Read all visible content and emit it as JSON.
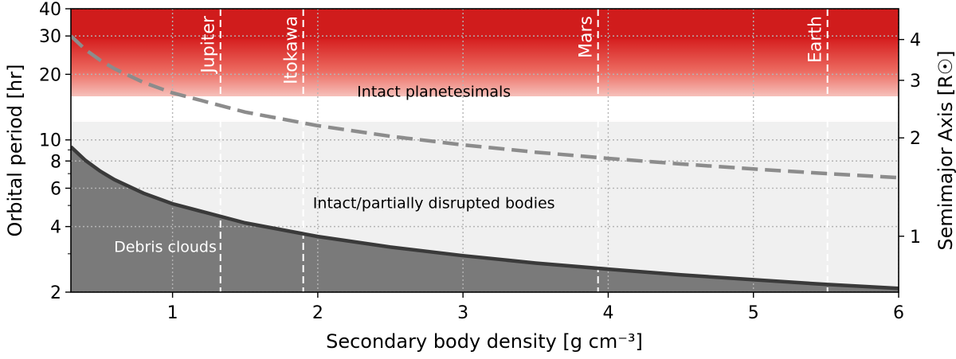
{
  "chart_data": {
    "type": "area",
    "xlabel": "Secondary body density [g cm⁻³]",
    "ylabel": "Orbital period [hr]",
    "ylabel_right": "Semimajor Axis [R☉]",
    "xlim": [
      0.3,
      6
    ],
    "ylim": [
      2,
      40
    ],
    "yscale": "log",
    "grid": true,
    "x_ticks": [
      1,
      2,
      3,
      4,
      5,
      6
    ],
    "x_tick_labels": [
      "1",
      "2",
      "3",
      "4",
      "5",
      "6"
    ],
    "y_ticks": [
      2,
      4,
      6,
      8,
      10,
      20,
      30,
      40
    ],
    "y_tick_labels": [
      "2",
      "4",
      "6",
      "8",
      "10",
      "20",
      "30",
      "40"
    ],
    "y_right_ticks": [
      1,
      2,
      3,
      4
    ],
    "y_right_tick_labels": [
      "1",
      "2",
      "3",
      "4"
    ],
    "regions": [
      {
        "label": "Intact planetesimals",
        "color": "#d32020",
        "at": [
          2.8,
          16.5
        ]
      },
      {
        "label": "Intact/partially disrupted bodies",
        "color": "#f0f0f0",
        "at": [
          2.8,
          5.1
        ]
      },
      {
        "label": "Debris clouds",
        "color": "#7a7a7a",
        "at": [
          0.95,
          3.2
        ]
      }
    ],
    "reference_lines": [
      {
        "label": "Jupiter",
        "x": 1.33
      },
      {
        "label": "Itokawa",
        "x": 1.9
      },
      {
        "label": "Mars",
        "x": 3.93
      },
      {
        "label": "Earth",
        "x": 5.51
      }
    ],
    "series": [
      {
        "style": "solid",
        "color": "#3a3a3a",
        "x": [
          0.3,
          0.4,
          0.5,
          0.6,
          0.8,
          1.0,
          1.5,
          2.0,
          2.5,
          3.0,
          3.5,
          4.0,
          4.5,
          5.0,
          5.5,
          6.0
        ],
        "y": [
          9.3,
          8.05,
          7.2,
          6.57,
          5.69,
          5.09,
          4.16,
          3.6,
          3.22,
          2.94,
          2.72,
          2.55,
          2.4,
          2.28,
          2.17,
          2.08
        ]
      },
      {
        "style": "dashed",
        "color": "#8c8c8c",
        "x": [
          0.3,
          0.4,
          0.5,
          0.6,
          0.8,
          1.0,
          1.5,
          2.0,
          2.5,
          3.0,
          3.5,
          4.0,
          4.5,
          5.0,
          5.5,
          6.0
        ],
        "y": [
          30.0,
          25.98,
          23.24,
          21.21,
          18.37,
          16.43,
          13.42,
          11.62,
          10.39,
          9.49,
          8.78,
          8.22,
          7.75,
          7.35,
          7.01,
          6.71
        ]
      }
    ]
  }
}
